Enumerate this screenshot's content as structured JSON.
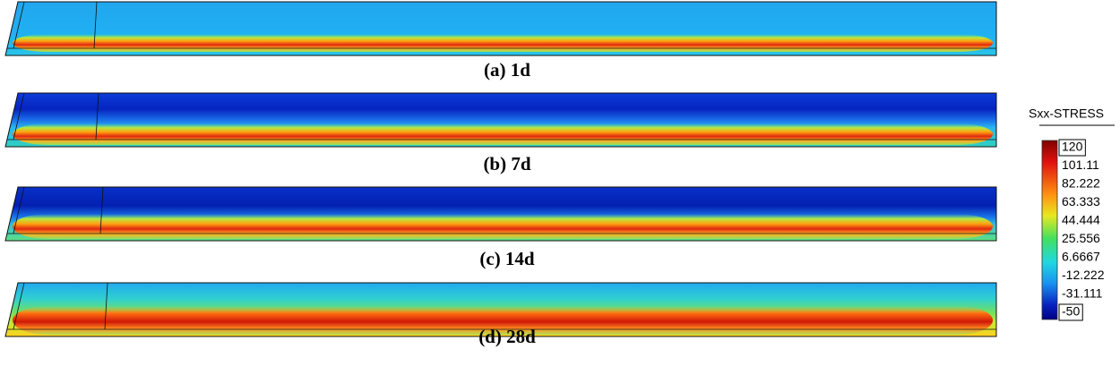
{
  "panels": [
    {
      "caption": "(a) 1d"
    },
    {
      "caption": "(b) 7d"
    },
    {
      "caption": "(c) 14d"
    },
    {
      "caption": "(d) 28d"
    }
  ],
  "colorbar": {
    "title": "Sxx-STRESS",
    "ticks": [
      120,
      101.11,
      82.222,
      63.333,
      44.444,
      25.556,
      6.6667,
      -12.222,
      -31.111,
      -50
    ]
  }
}
